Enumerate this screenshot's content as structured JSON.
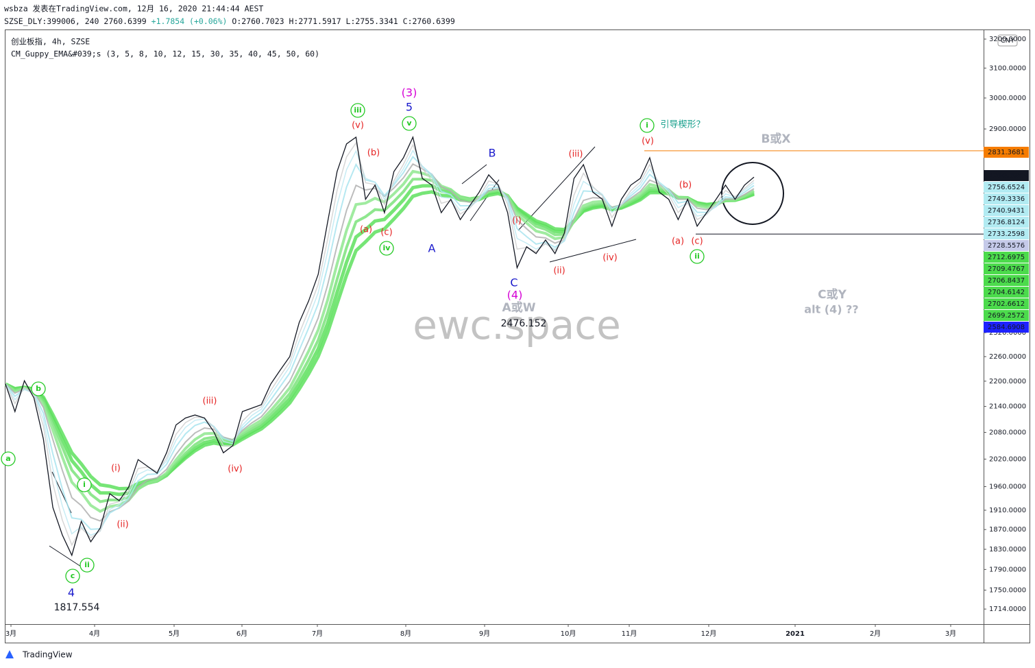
{
  "header": {
    "byline": "wsbza 发表在TradingView.com, 12月 16, 2020 21:44:44 AEST",
    "symbol": "SZSE_DLY:399006, 240",
    "last": "2760.6399",
    "change": "+1.7854 (+0.06%)",
    "ohlc": "O:2760.7023 H:2771.5917 L:2755.3341 C:2760.6399",
    "legend_symbol": "创业板指, 4h, SZSE",
    "legend_indicator": "CM_Guppy_EMA&#039;s (3, 5, 8, 10, 12, 15, 30, 35, 40, 45, 50, 60)",
    "currency": "CNY",
    "footer": "TradingView",
    "watermark": "ewc.space"
  },
  "chart_data": {
    "type": "line",
    "log_scale": true,
    "color": "#131722",
    "ylim": [
      1686,
      3229
    ],
    "yticks": [
      {
        "value": 3200,
        "label": "3200.0000"
      },
      {
        "value": 3100,
        "label": "3100.0000"
      },
      {
        "value": 3000,
        "label": "3000.0000"
      },
      {
        "value": 2900,
        "label": "2900.0000"
      },
      {
        "value": 2320,
        "label": "2320.0000"
      },
      {
        "value": 2260,
        "label": "2260.0000"
      },
      {
        "value": 2200,
        "label": "2200.0000"
      },
      {
        "value": 2140,
        "label": "2140.0000"
      },
      {
        "value": 2080,
        "label": "2080.0000"
      },
      {
        "value": 2020,
        "label": "2020.0000"
      },
      {
        "value": 1960,
        "label": "1960.0000"
      },
      {
        "value": 1910,
        "label": "1910.0000"
      },
      {
        "value": 1870,
        "label": "1870.0000"
      },
      {
        "value": 1830,
        "label": "1830.0000"
      },
      {
        "value": 1790,
        "label": "1790.0000"
      },
      {
        "value": 1750,
        "label": "1750.0000"
      },
      {
        "value": 1714,
        "label": "1714.0000"
      }
    ],
    "months": [
      "3月",
      "4月",
      "5月",
      "6月",
      "7月",
      "8月",
      "9月",
      "10月",
      "11月",
      "12月",
      "2021",
      "2月",
      "3月"
    ],
    "values": [
      2193,
      2128,
      2201,
      2160,
      2065,
      1916,
      1859,
      1818,
      1887,
      1845,
      1873,
      1945,
      1930,
      1959,
      2019,
      2004,
      1989,
      2034,
      2097,
      2113,
      2120,
      2113,
      2081,
      2034,
      2050,
      2128,
      2136,
      2144,
      2193,
      2227,
      2260,
      2346,
      2402,
      2473,
      2619,
      2768,
      2853,
      2874,
      2685,
      2727,
      2646,
      2768,
      2810,
      2874,
      2747,
      2727,
      2646,
      2685,
      2626,
      2666,
      2706,
      2758,
      2727,
      2646,
      2491,
      2549,
      2530,
      2568,
      2530,
      2588,
      2747,
      2789,
      2706,
      2685,
      2607,
      2685,
      2727,
      2747,
      2810,
      2706,
      2685,
      2626,
      2685,
      2607,
      2646,
      2685,
      2727,
      2685,
      2727,
      2751
    ],
    "price_tags": [
      {
        "value": 2831.3681,
        "color": "#f57c00",
        "line": true
      },
      {
        "value": 2760.6399,
        "color": "#131722"
      },
      {
        "value": 2756.6524,
        "color": "#b2ebf2"
      },
      {
        "value": 2749.3336,
        "color": "#b2ebf2"
      },
      {
        "value": 2740.9431,
        "color": "#b2ebf2"
      },
      {
        "value": 2736.8124,
        "color": "#b2ebf2"
      },
      {
        "value": 2733.2598,
        "color": "#b2ebf2"
      },
      {
        "value": 2728.5576,
        "color": "#c5cae9"
      },
      {
        "value": 2712.6975,
        "color": "#4cdb4c"
      },
      {
        "value": 2709.4767,
        "color": "#4cdb4c"
      },
      {
        "value": 2706.8437,
        "color": "#4cdb4c"
      },
      {
        "value": 2704.6142,
        "color": "#4cdb4c"
      },
      {
        "value": 2702.6612,
        "color": "#4cdb4c"
      },
      {
        "value": 2699.2572,
        "color": "#4cdb4c"
      },
      {
        "value": 2584.6908,
        "color": "#1e22ff",
        "line": true
      }
    ],
    "annotations": [
      {
        "text": "(3)",
        "color": "#d500d5"
      },
      {
        "text": "5",
        "color": "#1a1acc"
      },
      {
        "text": "iii",
        "color": "#22c922",
        "circle": true
      },
      {
        "text": "(v)",
        "color": "#e52222"
      },
      {
        "text": "v",
        "color": "#22c922",
        "circle": true
      },
      {
        "text": "(b)",
        "color": "#e52222"
      },
      {
        "text": "(a)",
        "color": "#e52222"
      },
      {
        "text": "(c)",
        "color": "#e52222"
      },
      {
        "text": "iv",
        "color": "#22c922",
        "circle": true
      },
      {
        "text": "A",
        "color": "#1a1acc"
      },
      {
        "text": "B",
        "color": "#1a1acc"
      },
      {
        "text": "C",
        "color": "#1a1acc"
      },
      {
        "text": "(4)",
        "color": "#d500d5"
      },
      {
        "text": "A或W",
        "color": "#b0b4be"
      },
      {
        "text": "2476.152",
        "color": "#131722"
      },
      {
        "text": "(i)",
        "color": "#e52222"
      },
      {
        "text": "(ii)",
        "color": "#e52222"
      },
      {
        "text": "(iii)",
        "color": "#e52222"
      },
      {
        "text": "(iv)",
        "color": "#e52222"
      },
      {
        "text": "i",
        "color": "#22c922",
        "circle": true
      },
      {
        "text": "引导楔形？",
        "color": "#139e8a"
      },
      {
        "text": "(v)",
        "color": "#e52222"
      },
      {
        "text": "B或X",
        "color": "#b0b4be"
      },
      {
        "text": "(b)",
        "color": "#e52222"
      },
      {
        "text": "(a)",
        "color": "#e52222"
      },
      {
        "text": "(c)",
        "color": "#e52222"
      },
      {
        "text": "ii",
        "color": "#22c922",
        "circle": true
      },
      {
        "text": "C或Y",
        "color": "#b0b4be"
      },
      {
        "text": "alt (4) ??",
        "color": "#b0b4be"
      },
      {
        "text": "b",
        "color": "#22c922",
        "circle": true
      },
      {
        "text": "a",
        "color": "#22c922",
        "circle": true
      },
      {
        "text": "(iii)",
        "color": "#e52222"
      },
      {
        "text": "(iv)",
        "color": "#e52222"
      },
      {
        "text": "(i)",
        "color": "#e52222"
      },
      {
        "text": "(ii)",
        "color": "#e52222"
      },
      {
        "text": "i",
        "color": "#22c922",
        "circle": true
      },
      {
        "text": "c",
        "color": "#22c922",
        "circle": true
      },
      {
        "text": "ii",
        "color": "#22c922",
        "circle": true
      },
      {
        "text": "4",
        "color": "#1a1acc"
      },
      {
        "text": "1817.554",
        "color": "#131722"
      }
    ]
  }
}
